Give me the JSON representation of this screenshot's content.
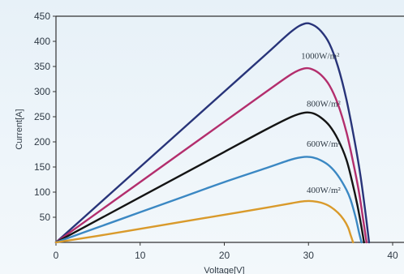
{
  "chart_data": {
    "type": "line",
    "title": "",
    "xlabel": "Voltage[V]",
    "ylabel": "Current[A]",
    "xlim": [
      0,
      40
    ],
    "ylim": [
      0,
      450
    ],
    "xticks": [
      0,
      10,
      20,
      30,
      40
    ],
    "yticks": [
      50,
      100,
      150,
      200,
      250,
      300,
      350,
      400,
      450
    ],
    "grid": false,
    "legend": "none",
    "series": [
      {
        "name": "1000W/m²",
        "color": "#283479",
        "x": [
          0,
          5,
          10,
          15,
          20,
          25,
          28,
          29.5,
          30.5,
          31.5,
          32.5,
          33.5,
          34.5,
          35.5,
          36.2,
          36.8,
          37.2
        ],
        "y": [
          0,
          75,
          150,
          225,
          300,
          375,
          420,
          435,
          433,
          420,
          395,
          350,
          285,
          200,
          130,
          55,
          0
        ]
      },
      {
        "name": "800W/m²",
        "color": "#b32e6d",
        "x": [
          0,
          5,
          10,
          15,
          20,
          25,
          28,
          29.5,
          30.5,
          31.5,
          32.5,
          33.5,
          34.5,
          35.3,
          36,
          36.5,
          36.9
        ],
        "y": [
          0,
          60,
          120,
          180,
          240,
          300,
          335,
          346,
          344,
          333,
          312,
          275,
          220,
          160,
          100,
          45,
          0
        ]
      },
      {
        "name": "600W/m²",
        "color": "#141414",
        "x": [
          0,
          5,
          10,
          15,
          20,
          25,
          28,
          29.5,
          30.5,
          31.5,
          32.5,
          33.5,
          34.5,
          35.2,
          35.8,
          36.3,
          36.6
        ],
        "y": [
          0,
          45,
          90,
          135,
          180,
          225,
          250,
          258,
          257,
          248,
          232,
          205,
          165,
          120,
          75,
          30,
          0
        ]
      },
      {
        "name": "",
        "color": "#3b88c3",
        "x": [
          0,
          5,
          10,
          15,
          20,
          25,
          28,
          29.5,
          30.5,
          31.5,
          32.5,
          33.5,
          34.5,
          35,
          35.6,
          36,
          36.3
        ],
        "y": [
          0,
          30,
          60,
          90,
          120,
          148,
          165,
          170,
          169,
          163,
          152,
          133,
          105,
          85,
          50,
          20,
          0
        ]
      },
      {
        "name": "400W/m²",
        "color": "#d99a2b",
        "x": [
          0,
          5,
          10,
          15,
          20,
          25,
          28,
          29.5,
          30.5,
          31.5,
          32.5,
          33.5,
          34.2,
          34.7,
          35,
          35.3
        ],
        "y": [
          0,
          13,
          27,
          41,
          55,
          69,
          78,
          82,
          82,
          79,
          72,
          59,
          45,
          30,
          15,
          0
        ]
      }
    ]
  }
}
